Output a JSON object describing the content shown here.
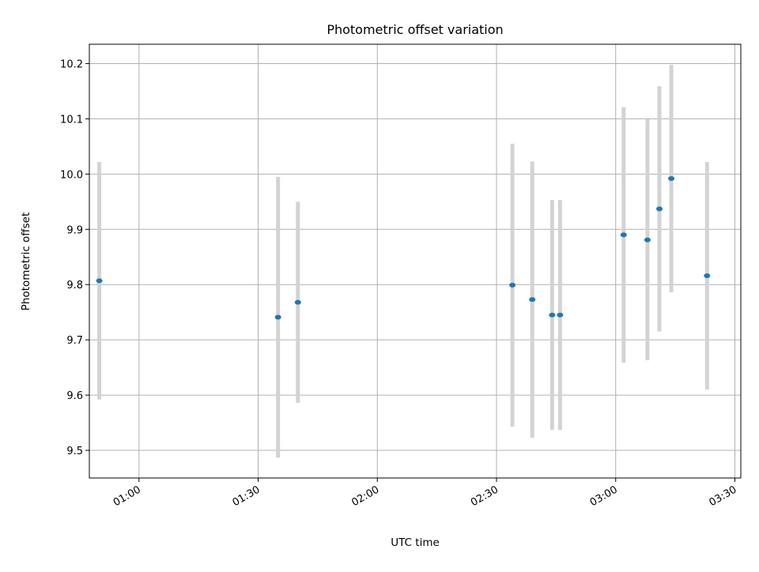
{
  "chart_data": {
    "type": "scatter",
    "title": "Photometric offset variation",
    "xlabel": "UTC time",
    "ylabel": "Photometric offset",
    "xlim": [
      "00:47:30",
      "03:31:30"
    ],
    "ylim": [
      9.45,
      10.235
    ],
    "x_ticks": [
      "01:00",
      "01:30",
      "02:00",
      "02:30",
      "03:00",
      "03:30"
    ],
    "y_ticks": [
      9.5,
      9.6,
      9.7,
      9.8,
      9.9,
      10.0,
      10.1,
      10.2
    ],
    "y_tick_labels": [
      "9.5",
      "9.6",
      "9.7",
      "9.8",
      "9.9",
      "10.0",
      "10.1",
      "10.2"
    ],
    "grid": true,
    "marker_color": "#1f77b4",
    "errorbar_color": "#d3d3d3",
    "points": [
      {
        "x": "00:50",
        "y": 9.807,
        "err": 0.215
      },
      {
        "x": "01:35",
        "y": 9.741,
        "err": 0.254
      },
      {
        "x": "01:40",
        "y": 9.768,
        "err": 0.182
      },
      {
        "x": "02:34",
        "y": 9.799,
        "err": 0.256
      },
      {
        "x": "02:39",
        "y": 9.773,
        "err": 0.25
      },
      {
        "x": "02:44",
        "y": 9.745,
        "err": 0.208
      },
      {
        "x": "02:46",
        "y": 9.745,
        "err": 0.208
      },
      {
        "x": "03:02",
        "y": 9.89,
        "err": 0.231
      },
      {
        "x": "03:08",
        "y": 9.881,
        "err": 0.218
      },
      {
        "x": "03:11",
        "y": 9.937,
        "err": 0.222
      },
      {
        "x": "03:14",
        "y": 9.992,
        "err": 0.206
      },
      {
        "x": "03:23",
        "y": 9.816,
        "err": 0.206
      }
    ]
  }
}
